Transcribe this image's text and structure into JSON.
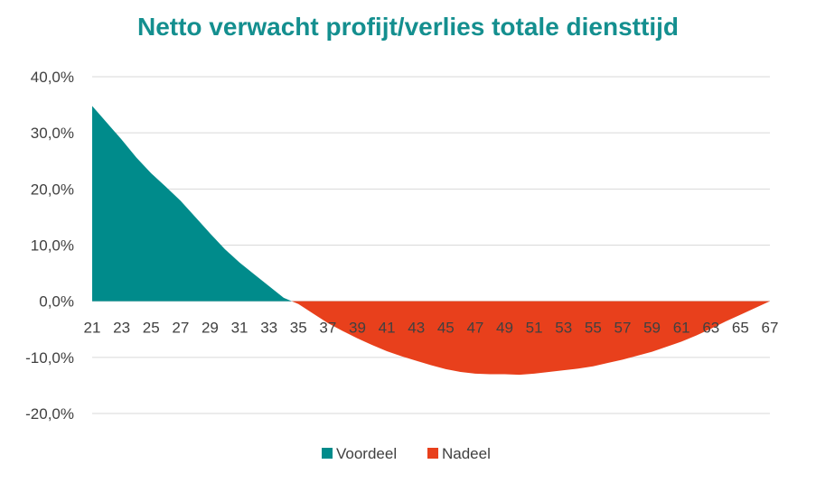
{
  "chart_data": {
    "type": "area",
    "title": "Netto verwacht profijt/verlies totale diensttijd",
    "xlabel": "",
    "ylabel": "",
    "x": [
      21,
      22,
      23,
      24,
      25,
      26,
      27,
      28,
      29,
      30,
      31,
      32,
      33,
      34,
      35,
      36,
      37,
      38,
      39,
      40,
      41,
      42,
      43,
      44,
      45,
      46,
      47,
      48,
      49,
      50,
      51,
      52,
      53,
      54,
      55,
      56,
      57,
      58,
      59,
      60,
      61,
      62,
      63,
      64,
      65,
      66,
      67
    ],
    "values": [
      34.8,
      31.8,
      28.8,
      25.6,
      22.8,
      20.4,
      17.9,
      15.0,
      12.1,
      9.3,
      6.9,
      4.8,
      2.7,
      0.6,
      -0.5,
      -2.2,
      -3.9,
      -5.3,
      -6.6,
      -7.8,
      -8.9,
      -9.8,
      -10.6,
      -11.4,
      -12.1,
      -12.6,
      -12.9,
      -13.0,
      -13.0,
      -13.1,
      -12.9,
      -12.6,
      -12.3,
      -12.0,
      -11.6,
      -11.0,
      -10.4,
      -9.7,
      -9.0,
      -8.1,
      -7.2,
      -6.1,
      -4.9,
      -3.6,
      -2.4,
      -1.2,
      0.0
    ],
    "series": [
      {
        "name": "Voordeel",
        "color": "#008b8b"
      },
      {
        "name": "Nadeel",
        "color": "#e8401c"
      }
    ],
    "x_tick_labels": [
      "21",
      "23",
      "25",
      "27",
      "29",
      "31",
      "33",
      "35",
      "37",
      "39",
      "41",
      "43",
      "45",
      "47",
      "49",
      "51",
      "53",
      "55",
      "57",
      "59",
      "61",
      "63",
      "65",
      "67"
    ],
    "y_ticks": [
      40,
      30,
      20,
      10,
      0,
      -10,
      -20
    ],
    "y_tick_labels": [
      "40,0%",
      "30,0%",
      "20,0%",
      "10,0%",
      "0,0%",
      "-10,0%",
      "-20,0%"
    ],
    "ylim": [
      -20,
      40
    ],
    "xlim": [
      21,
      67
    ],
    "grid": true,
    "legend_position": "bottom",
    "title_color": "#148f8f"
  }
}
